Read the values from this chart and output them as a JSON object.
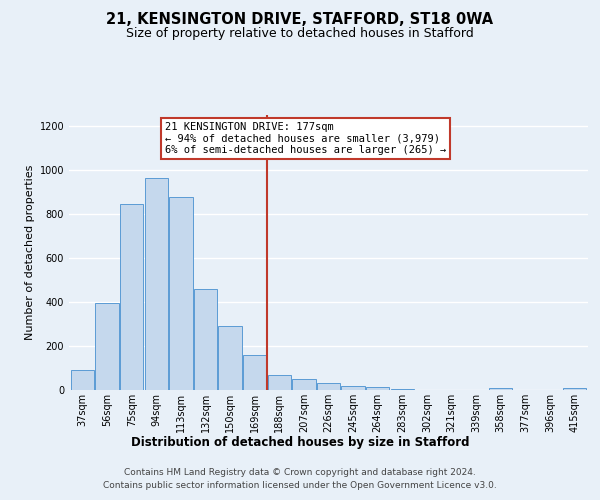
{
  "title1": "21, KENSINGTON DRIVE, STAFFORD, ST18 0WA",
  "title2": "Size of property relative to detached houses in Stafford",
  "xlabel": "Distribution of detached houses by size in Stafford",
  "ylabel": "Number of detached properties",
  "categories": [
    "37sqm",
    "56sqm",
    "75sqm",
    "94sqm",
    "113sqm",
    "132sqm",
    "150sqm",
    "169sqm",
    "188sqm",
    "207sqm",
    "226sqm",
    "245sqm",
    "264sqm",
    "283sqm",
    "302sqm",
    "321sqm",
    "339sqm",
    "358sqm",
    "377sqm",
    "396sqm",
    "415sqm"
  ],
  "values": [
    90,
    397,
    847,
    965,
    878,
    460,
    293,
    160,
    68,
    51,
    30,
    20,
    14,
    5,
    0,
    0,
    0,
    10,
    0,
    0,
    10
  ],
  "bar_color": "#c5d8ed",
  "bar_edge_color": "#5b9bd5",
  "vline_x": 7.5,
  "vline_color": "#c0392b",
  "annotation_line1": "21 KENSINGTON DRIVE: 177sqm",
  "annotation_line2": "← 94% of detached houses are smaller (3,979)",
  "annotation_line3": "6% of semi-detached houses are larger (265) →",
  "annotation_box_color": "#c0392b",
  "footer1": "Contains HM Land Registry data © Crown copyright and database right 2024.",
  "footer2": "Contains public sector information licensed under the Open Government Licence v3.0.",
  "bg_color": "#e8f0f8",
  "plot_bg_color": "#e8f0f8",
  "ylim": [
    0,
    1250
  ],
  "yticks": [
    0,
    200,
    400,
    600,
    800,
    1000,
    1200
  ],
  "grid_color": "#ffffff",
  "title1_fontsize": 10.5,
  "title2_fontsize": 9,
  "xlabel_fontsize": 8.5,
  "ylabel_fontsize": 8,
  "tick_fontsize": 7,
  "footer_fontsize": 6.5,
  "ann_fontsize": 7.5
}
